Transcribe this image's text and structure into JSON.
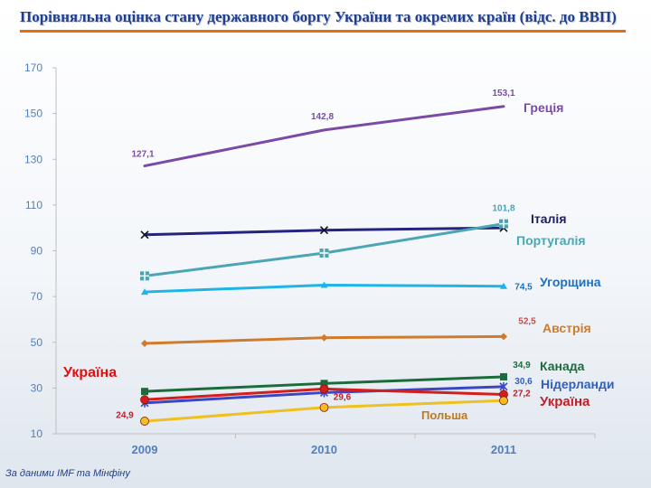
{
  "title": "Порівняльна оцінка стану державного боргу України та окремих країн (відс. до ВВП)",
  "footnote": "За даними IMF та Мінфіну",
  "colors": {
    "title": "#1f3f8c",
    "rule": "#e46c0a",
    "axis_text": "#4f7fc0",
    "grid": "#d9d9d9"
  },
  "chart_data": {
    "type": "line",
    "title": "",
    "xlabel": "",
    "ylabel": "",
    "categories": [
      "2009",
      "2010",
      "2011"
    ],
    "ylim": [
      10,
      170
    ],
    "yticks": [
      10,
      30,
      50,
      70,
      90,
      110,
      130,
      150,
      170
    ],
    "grid": false,
    "series": [
      {
        "name": "Греція",
        "color": "#7b4aa7",
        "marker": "none",
        "values": [
          127.1,
          142.8,
          153.1
        ],
        "labels": [
          "127,1",
          "142,8",
          "153,1"
        ],
        "label_color": "#7b4aa7"
      },
      {
        "name": "Італія",
        "color": "#24247f",
        "marker": "x",
        "values": [
          97,
          99,
          100
        ],
        "labels": [],
        "label_color": "#1e1e5f"
      },
      {
        "name": "Португалія",
        "color": "#4aa6b5",
        "marker": "square-plus",
        "values": [
          79,
          89,
          101.8
        ],
        "labels": [
          "",
          "",
          "101,8"
        ],
        "label_color": "#4aa6b5"
      },
      {
        "name": "Угорщина",
        "color": "#1fb4e8",
        "marker": "triangle",
        "values": [
          72,
          75,
          74.5
        ],
        "labels": [
          "",
          "",
          "74,5"
        ],
        "label_color": "#1f6fbf"
      },
      {
        "name": "Австрія",
        "color": "#d07a2a",
        "marker": "diamond",
        "values": [
          49.5,
          52,
          52.5
        ],
        "labels": [
          "",
          "",
          "52,5"
        ],
        "label_color": "#c0504d"
      },
      {
        "name": "Канада",
        "color": "#1c6b3a",
        "marker": "square",
        "values": [
          28.5,
          32,
          34.9
        ],
        "labels": [
          "",
          "",
          "34,9"
        ],
        "label_color": "#1c6b3a"
      },
      {
        "name": "Нідерланди",
        "color": "#3a46c4",
        "marker": "star",
        "values": [
          23.5,
          28,
          30.6
        ],
        "labels": [
          "",
          "",
          "30,6"
        ],
        "label_color": "#2f5fbf"
      },
      {
        "name": "Україна",
        "color": "#d41e1e",
        "marker": "circle",
        "values": [
          24.9,
          29.6,
          27.2
        ],
        "labels": [
          "24,9",
          "29,6",
          "27,2"
        ],
        "label_color": "#c0202a"
      },
      {
        "name": "Польша",
        "color": "#f0c020",
        "marker": "circle",
        "values": [
          15.5,
          21.5,
          24.5
        ],
        "labels": [],
        "label_color": "#c07a1a"
      }
    ],
    "series_names": {
      "greece": "Греція",
      "italy": "Італія",
      "portugal": "Португалія",
      "hungary": "Угорщина",
      "austria": "Австрія",
      "canada": "Канада",
      "netherlands": "Нідерланди",
      "ukraine": "Україна",
      "poland": "Польша"
    },
    "annotations": [
      {
        "text": "Україна",
        "color": "#e01010"
      }
    ]
  }
}
